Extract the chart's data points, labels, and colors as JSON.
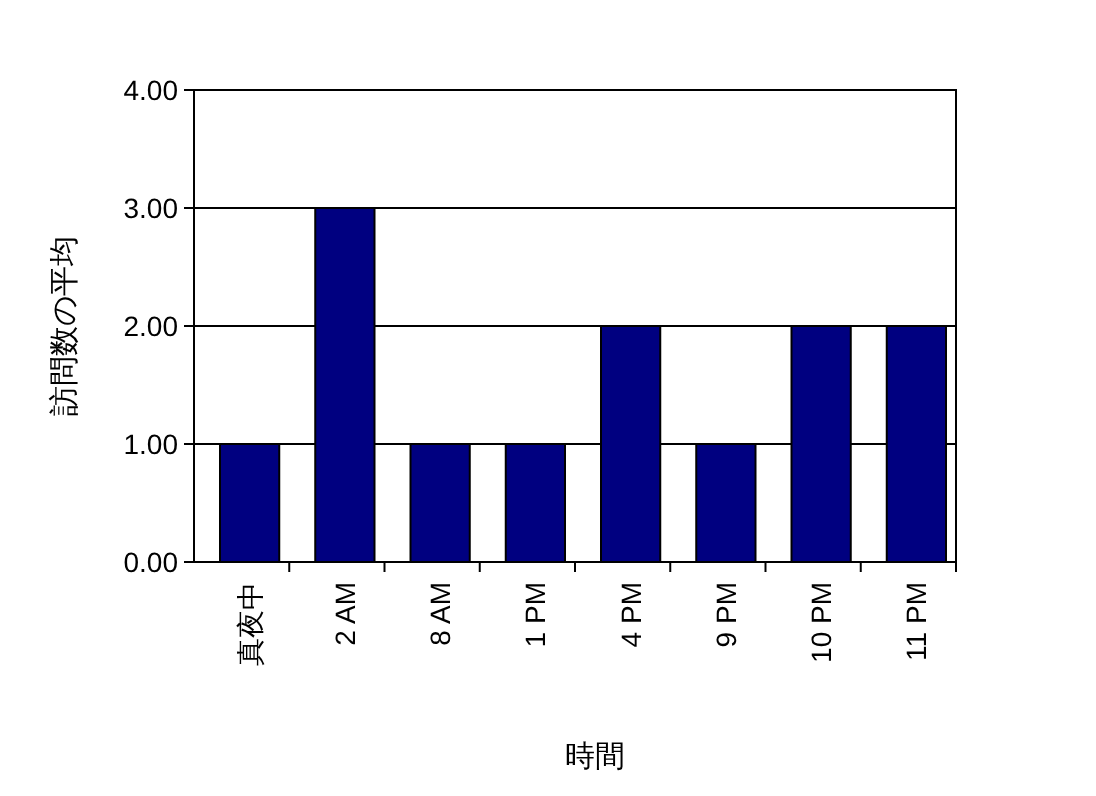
{
  "chart_data": {
    "type": "bar",
    "xlabel": "時間",
    "ylabel": "訪問数の平均",
    "categories": [
      "真夜中",
      "2 AM",
      "8 AM",
      "1 PM",
      "4 PM",
      "9 PM",
      "10 PM",
      "11 PM"
    ],
    "values": [
      1,
      3,
      1,
      1,
      2,
      1,
      2,
      2
    ],
    "color": "#000080",
    "ylim": [
      0,
      4
    ],
    "yticks": [
      {
        "value": 0,
        "label": "0.00"
      },
      {
        "value": 1,
        "label": "1.00"
      },
      {
        "value": 2,
        "label": "2.00"
      },
      {
        "value": 3,
        "label": "3.00"
      },
      {
        "value": 4,
        "label": "4.00"
      }
    ],
    "grid": "y"
  }
}
